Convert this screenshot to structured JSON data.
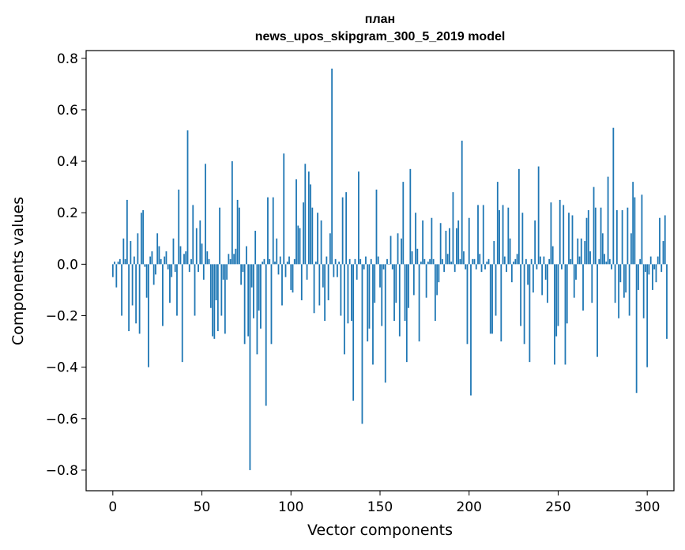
{
  "chart_data": {
    "type": "bar",
    "title_lines": [
      "план",
      "news_upos_skipgram_300_5_2019 model"
    ],
    "xlabel": "Vector components",
    "ylabel": "Components values",
    "xlim": [
      -15,
      315
    ],
    "ylim": [
      -0.88,
      0.83
    ],
    "xticks": [
      0,
      50,
      100,
      150,
      200,
      250,
      300
    ],
    "yticks": [
      0.8,
      0.6,
      0.4,
      0.2,
      0.0,
      -0.2,
      -0.4,
      -0.6,
      -0.8
    ],
    "ytick_labels": [
      "0.8",
      "0.6",
      "0.4",
      "0.2",
      "0.0",
      "−0.2",
      "−0.4",
      "−0.6",
      "−0.8"
    ],
    "grid": false,
    "color": "#1f77b4",
    "x_start": 0,
    "values": [
      -0.05,
      0.01,
      -0.09,
      0.01,
      0.02,
      -0.2,
      0.1,
      0.02,
      0.25,
      -0.26,
      0.09,
      -0.16,
      0.03,
      -0.23,
      0.12,
      -0.27,
      0.2,
      0.21,
      -0.01,
      -0.13,
      -0.4,
      0.03,
      0.05,
      -0.08,
      -0.04,
      0.12,
      0.07,
      0.02,
      -0.24,
      0.03,
      0.05,
      -0.02,
      -0.15,
      -0.05,
      0.1,
      -0.03,
      -0.2,
      0.29,
      0.07,
      -0.38,
      0.04,
      0.05,
      0.52,
      -0.03,
      0.02,
      0.23,
      -0.2,
      0.14,
      -0.03,
      0.17,
      0.08,
      -0.06,
      0.39,
      0.05,
      0.02,
      -0.17,
      -0.28,
      -0.29,
      -0.14,
      -0.26,
      0.22,
      -0.2,
      -0.06,
      -0.27,
      -0.06,
      0.04,
      0.02,
      0.4,
      0.04,
      0.06,
      0.25,
      0.22,
      -0.08,
      -0.03,
      -0.31,
      0.07,
      -0.28,
      -0.8,
      -0.09,
      -0.21,
      0.13,
      -0.35,
      -0.18,
      -0.25,
      0.01,
      0.02,
      -0.55,
      0.26,
      0.02,
      -0.31,
      0.26,
      0.01,
      0.1,
      -0.04,
      0.03,
      -0.16,
      0.43,
      -0.05,
      0.01,
      0.03,
      -0.1,
      -0.11,
      0.02,
      0.33,
      0.15,
      0.14,
      -0.14,
      0.24,
      0.39,
      -0.06,
      0.36,
      0.31,
      0.22,
      -0.19,
      0.01,
      0.2,
      -0.16,
      0.17,
      -0.09,
      -0.22,
      0.03,
      -0.14,
      0.12,
      0.76,
      -0.05,
      0.02,
      -0.05,
      0.01,
      -0.2,
      0.26,
      -0.35,
      0.28,
      -0.23,
      0.02,
      -0.22,
      -0.53,
      0.02,
      -0.06,
      0.36,
      0.02,
      -0.62,
      -0.02,
      0.03,
      -0.3,
      -0.25,
      0.02,
      -0.39,
      -0.15,
      0.29,
      0.03,
      -0.09,
      -0.24,
      -0.02,
      -0.46,
      0.02,
      0.0,
      0.11,
      -0.02,
      -0.22,
      -0.15,
      0.12,
      -0.28,
      0.1,
      0.32,
      -0.22,
      -0.38,
      -0.17,
      0.37,
      0.05,
      -0.12,
      0.2,
      0.06,
      -0.3,
      0.01,
      0.17,
      0.02,
      -0.13,
      0.01,
      0.02,
      0.18,
      0.02,
      -0.22,
      -0.12,
      -0.07,
      0.16,
      0.02,
      -0.03,
      0.13,
      0.04,
      0.14,
      0.01,
      0.28,
      -0.03,
      0.14,
      0.17,
      0.02,
      0.48,
      0.05,
      -0.02,
      -0.31,
      0.18,
      -0.51,
      0.02,
      0.02,
      -0.02,
      0.23,
      0.04,
      -0.03,
      0.23,
      -0.02,
      0.01,
      0.02,
      -0.27,
      -0.27,
      0.09,
      -0.2,
      0.32,
      0.21,
      -0.3,
      0.23,
      0.03,
      -0.03,
      0.22,
      0.1,
      -0.07,
      0.01,
      0.02,
      0.04,
      0.37,
      -0.24,
      0.2,
      -0.31,
      0.02,
      -0.08,
      -0.38,
      0.02,
      -0.11,
      0.17,
      -0.02,
      0.38,
      0.03,
      -0.12,
      0.03,
      -0.06,
      -0.15,
      0.02,
      0.24,
      0.07,
      -0.39,
      -0.28,
      -0.24,
      0.25,
      -0.02,
      0.23,
      -0.39,
      -0.23,
      0.2,
      0.02,
      0.19,
      -0.13,
      -0.06,
      0.1,
      0.03,
      0.1,
      -0.18,
      0.09,
      0.18,
      0.21,
      0.05,
      -0.15,
      0.3,
      0.22,
      -0.36,
      0.02,
      0.22,
      0.12,
      0.04,
      0.01,
      0.34,
      0.02,
      -0.02,
      0.53,
      -0.15,
      0.21,
      -0.21,
      -0.07,
      0.21,
      -0.13,
      -0.11,
      0.22,
      -0.2,
      0.12,
      0.32,
      0.26,
      -0.5,
      -0.1,
      0.02,
      0.27,
      -0.21,
      -0.03,
      -0.4,
      -0.04,
      0.03,
      -0.1,
      -0.02,
      -0.07,
      0.03,
      0.18,
      -0.03,
      0.09,
      0.19,
      -0.29
    ]
  }
}
